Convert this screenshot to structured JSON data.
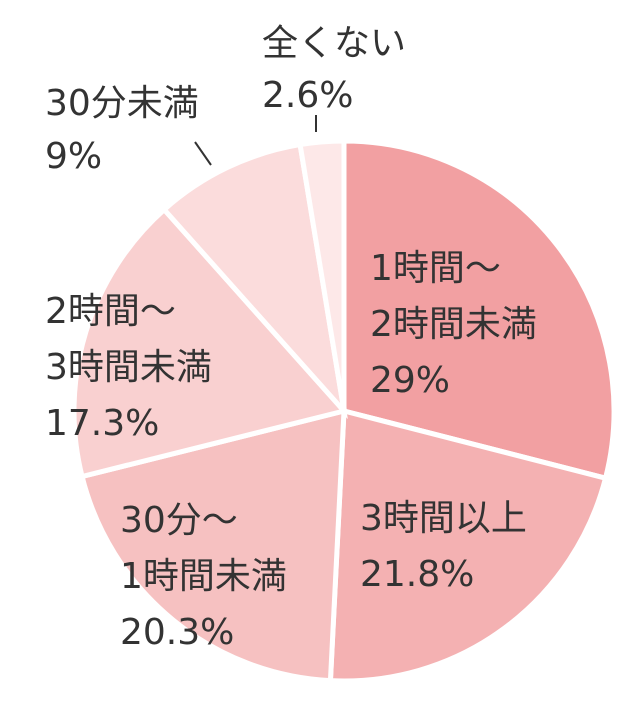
{
  "chart_data": {
    "type": "pie",
    "title": "",
    "start": "12 o'clock, clockwise",
    "slices": [
      {
        "lines": [
          "1時間〜",
          "2時間未満"
        ],
        "value_label": "29%",
        "value": 29.0,
        "color": "#f2a0a2"
      },
      {
        "lines": [
          "3時間以上"
        ],
        "value_label": "21.8%",
        "value": 21.8,
        "color": "#f4b1b2"
      },
      {
        "lines": [
          "30分〜",
          "1時間未満"
        ],
        "value_label": "20.3%",
        "value": 20.3,
        "color": "#f6c1c1"
      },
      {
        "lines": [
          "2時間〜",
          "3時間未満"
        ],
        "value_label": "17.3%",
        "value": 17.3,
        "color": "#f9d0d0"
      },
      {
        "lines": [
          "30分未満"
        ],
        "value_label": "9%",
        "value": 9.0,
        "color": "#fbdcdc"
      },
      {
        "lines": [
          "全くない"
        ],
        "value_label": "2.6%",
        "value": 2.6,
        "color": "#fde8e8"
      }
    ],
    "separator_color": "#ffffff",
    "legend": "none"
  }
}
